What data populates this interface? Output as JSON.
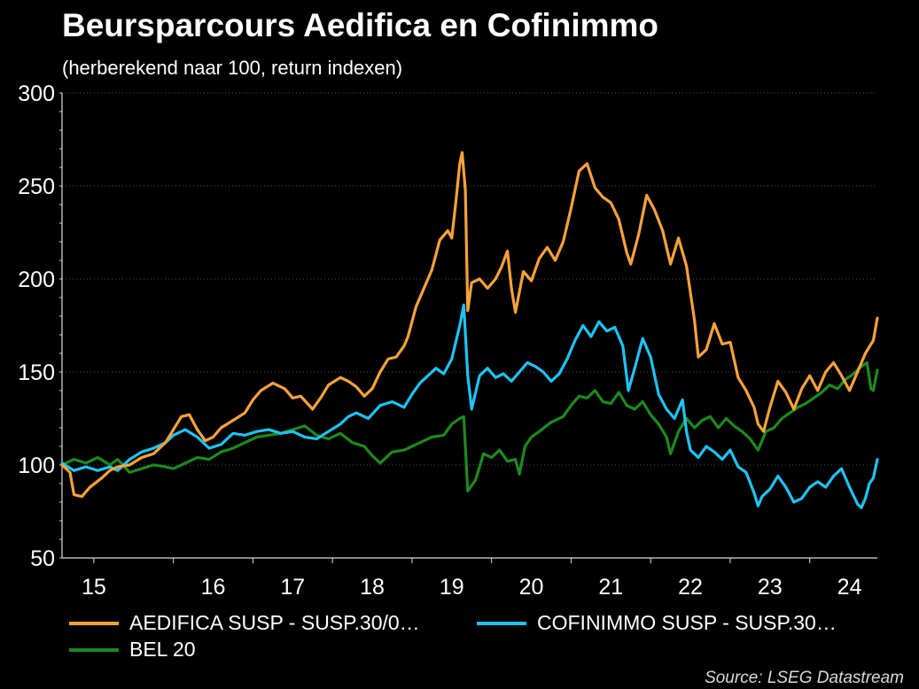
{
  "title": "Beursparcours Aedifica en Cofinimmo",
  "subtitle": "(herberekend naar 100, return indexen)",
  "source": "Source: LSEG Datastream",
  "chart_data": {
    "type": "line",
    "ylim": [
      50,
      300
    ],
    "yticks": [
      "300",
      "250",
      "200",
      "150",
      "100",
      "50"
    ],
    "xlim": [
      2014.6,
      2024.85
    ],
    "xtick_labels": [
      "15",
      "16",
      "17",
      "18",
      "19",
      "20",
      "21",
      "22",
      "23",
      "24"
    ],
    "grid": true,
    "legend_position": "bottom",
    "series": [
      {
        "name": "AEDIFICA SUSP - SUSP.30/0…",
        "color": "#f7a23b",
        "points": [
          [
            2014.6,
            100
          ],
          [
            2014.7,
            96
          ],
          [
            2014.75,
            84
          ],
          [
            2014.85,
            83
          ],
          [
            2014.95,
            88
          ],
          [
            2015.1,
            93
          ],
          [
            2015.2,
            97
          ],
          [
            2015.3,
            99
          ],
          [
            2015.45,
            100
          ],
          [
            2015.6,
            104
          ],
          [
            2015.75,
            106
          ],
          [
            2015.9,
            112
          ],
          [
            2016.0,
            119
          ],
          [
            2016.1,
            126
          ],
          [
            2016.2,
            127
          ],
          [
            2016.3,
            119
          ],
          [
            2016.4,
            113
          ],
          [
            2016.5,
            115
          ],
          [
            2016.6,
            120
          ],
          [
            2016.75,
            124
          ],
          [
            2016.9,
            128
          ],
          [
            2017.0,
            135
          ],
          [
            2017.1,
            140
          ],
          [
            2017.25,
            144
          ],
          [
            2017.4,
            141
          ],
          [
            2017.5,
            136
          ],
          [
            2017.6,
            137
          ],
          [
            2017.75,
            130
          ],
          [
            2017.85,
            136
          ],
          [
            2017.95,
            143
          ],
          [
            2018.1,
            147
          ],
          [
            2018.2,
            145
          ],
          [
            2018.3,
            142
          ],
          [
            2018.4,
            137
          ],
          [
            2018.5,
            141
          ],
          [
            2018.6,
            150
          ],
          [
            2018.7,
            157
          ],
          [
            2018.8,
            158
          ],
          [
            2018.9,
            164
          ],
          [
            2018.95,
            169
          ],
          [
            2019.05,
            185
          ],
          [
            2019.15,
            195
          ],
          [
            2019.25,
            205
          ],
          [
            2019.35,
            221
          ],
          [
            2019.45,
            226
          ],
          [
            2019.5,
            222
          ],
          [
            2019.55,
            241
          ],
          [
            2019.6,
            262
          ],
          [
            2019.63,
            268
          ],
          [
            2019.67,
            248
          ],
          [
            2019.7,
            183
          ],
          [
            2019.75,
            198
          ],
          [
            2019.85,
            200
          ],
          [
            2019.95,
            195
          ],
          [
            2020.05,
            200
          ],
          [
            2020.12,
            206
          ],
          [
            2020.2,
            215
          ],
          [
            2020.25,
            195
          ],
          [
            2020.3,
            182
          ],
          [
            2020.4,
            204
          ],
          [
            2020.5,
            199
          ],
          [
            2020.6,
            211
          ],
          [
            2020.7,
            217
          ],
          [
            2020.8,
            210
          ],
          [
            2020.9,
            220
          ],
          [
            2021.0,
            238
          ],
          [
            2021.1,
            258
          ],
          [
            2021.2,
            262
          ],
          [
            2021.3,
            249
          ],
          [
            2021.4,
            244
          ],
          [
            2021.5,
            241
          ],
          [
            2021.6,
            232
          ],
          [
            2021.7,
            214
          ],
          [
            2021.75,
            208
          ],
          [
            2021.85,
            224
          ],
          [
            2021.95,
            245
          ],
          [
            2022.05,
            237
          ],
          [
            2022.15,
            226
          ],
          [
            2022.25,
            208
          ],
          [
            2022.35,
            222
          ],
          [
            2022.45,
            207
          ],
          [
            2022.55,
            178
          ],
          [
            2022.6,
            158
          ],
          [
            2022.7,
            162
          ],
          [
            2022.8,
            176
          ],
          [
            2022.9,
            165
          ],
          [
            2023.0,
            166
          ],
          [
            2023.1,
            147
          ],
          [
            2023.2,
            140
          ],
          [
            2023.3,
            131
          ],
          [
            2023.35,
            122
          ],
          [
            2023.42,
            118
          ],
          [
            2023.5,
            131
          ],
          [
            2023.6,
            145
          ],
          [
            2023.7,
            139
          ],
          [
            2023.8,
            130
          ],
          [
            2023.9,
            141
          ],
          [
            2024.0,
            148
          ],
          [
            2024.1,
            140
          ],
          [
            2024.2,
            150
          ],
          [
            2024.3,
            155
          ],
          [
            2024.4,
            148
          ],
          [
            2024.5,
            140
          ],
          [
            2024.6,
            150
          ],
          [
            2024.7,
            160
          ],
          [
            2024.8,
            167
          ],
          [
            2024.85,
            179
          ]
        ]
      },
      {
        "name": "COFINIMMO SUSP - SUSP.30…",
        "color": "#1fc3f3",
        "points": [
          [
            2014.6,
            101
          ],
          [
            2014.75,
            97
          ],
          [
            2014.9,
            99
          ],
          [
            2015.05,
            97
          ],
          [
            2015.2,
            99
          ],
          [
            2015.3,
            97
          ],
          [
            2015.45,
            103
          ],
          [
            2015.6,
            107
          ],
          [
            2015.75,
            109
          ],
          [
            2015.9,
            112
          ],
          [
            2016.0,
            116
          ],
          [
            2016.15,
            119
          ],
          [
            2016.3,
            115
          ],
          [
            2016.45,
            109
          ],
          [
            2016.6,
            111
          ],
          [
            2016.75,
            117
          ],
          [
            2016.9,
            116
          ],
          [
            2017.05,
            118
          ],
          [
            2017.2,
            119
          ],
          [
            2017.35,
            117
          ],
          [
            2017.5,
            118
          ],
          [
            2017.65,
            115
          ],
          [
            2017.8,
            114
          ],
          [
            2017.95,
            118
          ],
          [
            2018.1,
            122
          ],
          [
            2018.2,
            126
          ],
          [
            2018.3,
            128
          ],
          [
            2018.45,
            125
          ],
          [
            2018.6,
            132
          ],
          [
            2018.75,
            134
          ],
          [
            2018.9,
            131
          ],
          [
            2019.0,
            138
          ],
          [
            2019.1,
            144
          ],
          [
            2019.2,
            148
          ],
          [
            2019.3,
            152
          ],
          [
            2019.4,
            149
          ],
          [
            2019.5,
            157
          ],
          [
            2019.6,
            175
          ],
          [
            2019.65,
            186
          ],
          [
            2019.7,
            148
          ],
          [
            2019.75,
            130
          ],
          [
            2019.85,
            148
          ],
          [
            2019.95,
            152
          ],
          [
            2020.05,
            147
          ],
          [
            2020.15,
            149
          ],
          [
            2020.25,
            145
          ],
          [
            2020.35,
            150
          ],
          [
            2020.45,
            155
          ],
          [
            2020.55,
            153
          ],
          [
            2020.65,
            150
          ],
          [
            2020.75,
            145
          ],
          [
            2020.85,
            149
          ],
          [
            2020.95,
            157
          ],
          [
            2021.05,
            167
          ],
          [
            2021.15,
            175
          ],
          [
            2021.25,
            169
          ],
          [
            2021.35,
            177
          ],
          [
            2021.45,
            172
          ],
          [
            2021.55,
            174
          ],
          [
            2021.65,
            164
          ],
          [
            2021.72,
            140
          ],
          [
            2021.8,
            152
          ],
          [
            2021.9,
            168
          ],
          [
            2022.0,
            158
          ],
          [
            2022.1,
            138
          ],
          [
            2022.2,
            130
          ],
          [
            2022.3,
            125
          ],
          [
            2022.4,
            135
          ],
          [
            2022.45,
            118
          ],
          [
            2022.5,
            108
          ],
          [
            2022.6,
            104
          ],
          [
            2022.7,
            110
          ],
          [
            2022.8,
            107
          ],
          [
            2022.9,
            103
          ],
          [
            2023.0,
            108
          ],
          [
            2023.1,
            99
          ],
          [
            2023.2,
            96
          ],
          [
            2023.3,
            85
          ],
          [
            2023.35,
            78
          ],
          [
            2023.4,
            83
          ],
          [
            2023.5,
            87
          ],
          [
            2023.6,
            94
          ],
          [
            2023.7,
            88
          ],
          [
            2023.8,
            80
          ],
          [
            2023.9,
            82
          ],
          [
            2024.0,
            88
          ],
          [
            2024.1,
            91
          ],
          [
            2024.2,
            88
          ],
          [
            2024.3,
            94
          ],
          [
            2024.4,
            98
          ],
          [
            2024.5,
            88
          ],
          [
            2024.6,
            79
          ],
          [
            2024.65,
            77
          ],
          [
            2024.7,
            82
          ],
          [
            2024.75,
            90
          ],
          [
            2024.8,
            93
          ],
          [
            2024.85,
            103
          ]
        ]
      },
      {
        "name": "BEL 20",
        "color": "#1d8a1d",
        "points": [
          [
            2014.6,
            100
          ],
          [
            2014.75,
            103
          ],
          [
            2014.9,
            101
          ],
          [
            2015.05,
            104
          ],
          [
            2015.2,
            100
          ],
          [
            2015.3,
            103
          ],
          [
            2015.45,
            96
          ],
          [
            2015.6,
            98
          ],
          [
            2015.75,
            100
          ],
          [
            2015.9,
            99
          ],
          [
            2016.0,
            98
          ],
          [
            2016.15,
            101
          ],
          [
            2016.3,
            104
          ],
          [
            2016.45,
            103
          ],
          [
            2016.6,
            107
          ],
          [
            2016.75,
            109
          ],
          [
            2016.9,
            112
          ],
          [
            2017.05,
            115
          ],
          [
            2017.2,
            116
          ],
          [
            2017.35,
            117
          ],
          [
            2017.5,
            119
          ],
          [
            2017.65,
            121
          ],
          [
            2017.8,
            116
          ],
          [
            2017.95,
            114
          ],
          [
            2018.1,
            117
          ],
          [
            2018.25,
            112
          ],
          [
            2018.4,
            110
          ],
          [
            2018.5,
            105
          ],
          [
            2018.6,
            101
          ],
          [
            2018.75,
            107
          ],
          [
            2018.9,
            108
          ],
          [
            2019.0,
            110
          ],
          [
            2019.1,
            112
          ],
          [
            2019.25,
            115
          ],
          [
            2019.4,
            116
          ],
          [
            2019.5,
            122
          ],
          [
            2019.6,
            125
          ],
          [
            2019.65,
            126
          ],
          [
            2019.7,
            86
          ],
          [
            2019.8,
            92
          ],
          [
            2019.9,
            106
          ],
          [
            2020.0,
            104
          ],
          [
            2020.1,
            108
          ],
          [
            2020.2,
            102
          ],
          [
            2020.3,
            103
          ],
          [
            2020.35,
            95
          ],
          [
            2020.42,
            110
          ],
          [
            2020.5,
            115
          ],
          [
            2020.6,
            118
          ],
          [
            2020.75,
            123
          ],
          [
            2020.9,
            126
          ],
          [
            2021.0,
            132
          ],
          [
            2021.1,
            137
          ],
          [
            2021.2,
            136
          ],
          [
            2021.3,
            140
          ],
          [
            2021.4,
            134
          ],
          [
            2021.5,
            133
          ],
          [
            2021.6,
            139
          ],
          [
            2021.7,
            132
          ],
          [
            2021.8,
            130
          ],
          [
            2021.9,
            134
          ],
          [
            2022.0,
            127
          ],
          [
            2022.1,
            122
          ],
          [
            2022.2,
            115
          ],
          [
            2022.25,
            106
          ],
          [
            2022.35,
            118
          ],
          [
            2022.45,
            125
          ],
          [
            2022.55,
            120
          ],
          [
            2022.65,
            124
          ],
          [
            2022.75,
            126
          ],
          [
            2022.85,
            120
          ],
          [
            2022.95,
            125
          ],
          [
            2023.05,
            121
          ],
          [
            2023.15,
            118
          ],
          [
            2023.25,
            114
          ],
          [
            2023.35,
            108
          ],
          [
            2023.45,
            118
          ],
          [
            2023.55,
            120
          ],
          [
            2023.65,
            125
          ],
          [
            2023.75,
            128
          ],
          [
            2023.85,
            131
          ],
          [
            2023.95,
            133
          ],
          [
            2024.05,
            136
          ],
          [
            2024.15,
            139
          ],
          [
            2024.25,
            143
          ],
          [
            2024.35,
            141
          ],
          [
            2024.45,
            146
          ],
          [
            2024.55,
            149
          ],
          [
            2024.65,
            153
          ],
          [
            2024.72,
            155
          ],
          [
            2024.77,
            141
          ],
          [
            2024.8,
            140
          ],
          [
            2024.85,
            151
          ]
        ]
      }
    ]
  }
}
